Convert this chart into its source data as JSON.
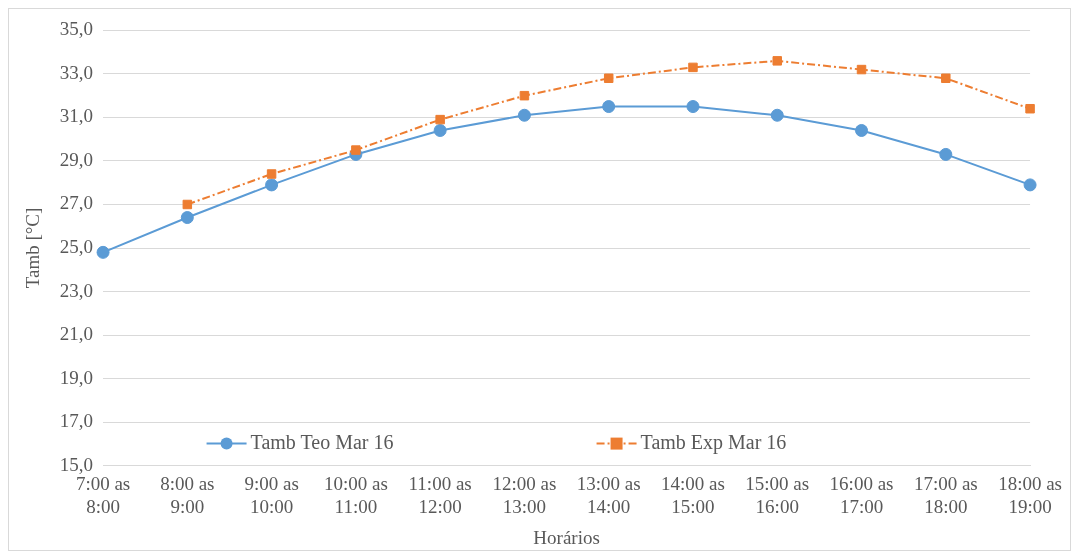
{
  "chart_data": {
    "type": "line",
    "xlabel": "Horários",
    "ylabel": "Tamb [°C]",
    "categories": [
      "7:00 as 8:00",
      "8:00 as 9:00",
      "9:00 as 10:00",
      "10:00 as 11:00",
      "11:00 as 12:00",
      "12:00 as 13:00",
      "13:00 as 14:00",
      "14:00 as 15:00",
      "15:00 as 16:00",
      "16:00 as 17:00",
      "17:00 as 18:00",
      "18:00 as 19:00"
    ],
    "series": [
      {
        "name": "Tamb Teo Mar 16",
        "color": "#5b9bd5",
        "marker": "circle",
        "line_style": "solid",
        "values": [
          24.8,
          26.4,
          27.9,
          29.3,
          30.4,
          31.1,
          31.5,
          31.5,
          31.1,
          30.4,
          29.3,
          27.9
        ]
      },
      {
        "name": "Tamb Exp Mar 16",
        "color": "#ed7d31",
        "marker": "square",
        "line_style": "dashed",
        "values": [
          null,
          27.0,
          28.4,
          29.5,
          30.9,
          32.0,
          32.8,
          33.3,
          33.6,
          33.2,
          32.8,
          31.4
        ]
      }
    ],
    "ylim": [
      15,
      35
    ],
    "yticks": [
      {
        "value": 15,
        "label": "15,0"
      },
      {
        "value": 17,
        "label": "17,0"
      },
      {
        "value": 19,
        "label": "19,0"
      },
      {
        "value": 21,
        "label": "21,0"
      },
      {
        "value": 23,
        "label": "23,0"
      },
      {
        "value": 25,
        "label": "25,0"
      },
      {
        "value": 27,
        "label": "27,0"
      },
      {
        "value": 29,
        "label": "29,0"
      },
      {
        "value": 31,
        "label": "31,0"
      },
      {
        "value": 33,
        "label": "33,0"
      },
      {
        "value": 35,
        "label": "35,0"
      }
    ],
    "grid": "y",
    "legend": "bottom"
  }
}
